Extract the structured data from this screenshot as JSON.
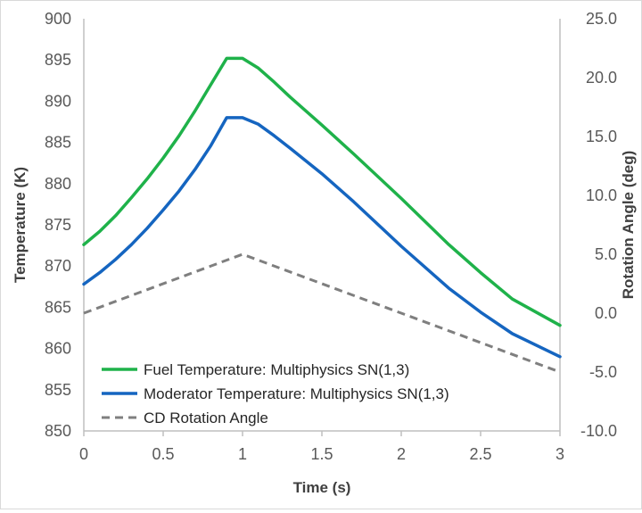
{
  "chart_data": {
    "type": "line",
    "x_label": "Time (s)",
    "y_label": "Temperature (K)",
    "y2_label": "Rotation Angle (deg)",
    "x_range": [
      0,
      3
    ],
    "y_range": [
      850,
      900
    ],
    "y2_range": [
      -10,
      25
    ],
    "x_ticks": [
      "0",
      "0.5",
      "1",
      "1.5",
      "2",
      "2.5",
      "3"
    ],
    "y_ticks": [
      "850",
      "855",
      "860",
      "865",
      "870",
      "875",
      "880",
      "885",
      "890",
      "895",
      "900"
    ],
    "y2_ticks": [
      "-10.0",
      "-5.0",
      "0.0",
      "5.0",
      "10.0",
      "15.0",
      "20.0",
      "25.0"
    ],
    "gridlines": false,
    "legend_position": "bottom-left",
    "series": [
      {
        "name": "Fuel Temperature: Multiphysics SN(1,3)",
        "axis": "left",
        "color": "#1fb24a",
        "dash": "solid",
        "x": [
          0,
          0.1,
          0.2,
          0.3,
          0.4,
          0.5,
          0.6,
          0.7,
          0.8,
          0.9,
          1.0,
          1.1,
          1.2,
          1.3,
          1.5,
          1.7,
          2.0,
          2.3,
          2.5,
          2.7,
          3.0
        ],
        "y": [
          872.6,
          874.2,
          876.1,
          878.3,
          880.6,
          883.1,
          885.8,
          888.8,
          892.0,
          895.2,
          895.2,
          894.0,
          892.3,
          890.5,
          887.1,
          883.6,
          878.2,
          872.6,
          869.2,
          866.0,
          862.8
        ]
      },
      {
        "name": "Moderator Temperature: Multiphysics SN(1,3)",
        "axis": "left",
        "color": "#1565c0",
        "dash": "solid",
        "x": [
          0,
          0.1,
          0.2,
          0.3,
          0.4,
          0.5,
          0.6,
          0.7,
          0.8,
          0.9,
          1.0,
          1.1,
          1.2,
          1.3,
          1.5,
          1.7,
          2.0,
          2.3,
          2.5,
          2.7,
          3.0
        ],
        "y": [
          867.8,
          869.2,
          870.8,
          872.6,
          874.6,
          876.8,
          879.1,
          881.7,
          884.6,
          888.0,
          888.0,
          887.2,
          885.8,
          884.3,
          881.2,
          877.8,
          872.4,
          867.3,
          864.4,
          861.8,
          859.0
        ]
      },
      {
        "name": "CD Rotation Angle",
        "axis": "right",
        "color": "#7f7f7f",
        "dash": "dashed",
        "x": [
          0,
          1,
          3
        ],
        "y": [
          0.0,
          5.0,
          -5.0
        ]
      }
    ]
  }
}
